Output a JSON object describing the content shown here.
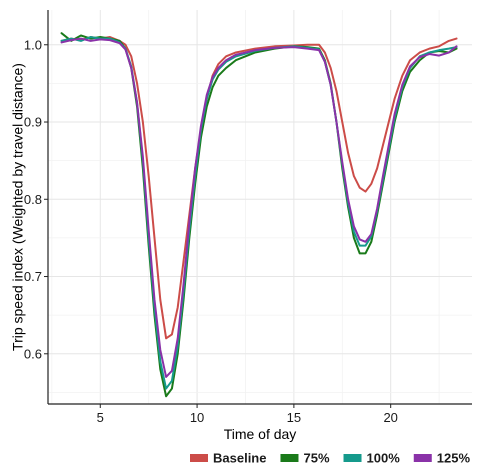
{
  "chart_data": {
    "type": "line",
    "title": "",
    "xlabel": "Time of day",
    "ylabel": "Trip speed index (Weighted by travel distance)",
    "xlim": [
      2.3,
      24.2
    ],
    "ylim": [
      0.535,
      1.045
    ],
    "x_ticks": [
      5,
      10,
      15,
      20
    ],
    "x_tick_labels": [
      "5",
      "10",
      "15",
      "20"
    ],
    "y_ticks": [
      0.6,
      0.7,
      0.8,
      0.9,
      1.0
    ],
    "y_tick_labels": [
      "0.6",
      "0.7",
      "0.8",
      "0.9",
      "1.0"
    ],
    "grid": true,
    "legend_position": "bottom-right",
    "series": [
      {
        "name": "Baseline",
        "color": "#cc4c48",
        "points": [
          [
            3.0,
            1.005
          ],
          [
            3.5,
            1.008
          ],
          [
            4.0,
            1.006
          ],
          [
            4.5,
            1.01
          ],
          [
            5.0,
            1.008
          ],
          [
            5.5,
            1.01
          ],
          [
            6.0,
            1.005
          ],
          [
            6.3,
            1.0
          ],
          [
            6.6,
            0.985
          ],
          [
            6.9,
            0.95
          ],
          [
            7.2,
            0.9
          ],
          [
            7.5,
            0.83
          ],
          [
            7.8,
            0.75
          ],
          [
            8.1,
            0.67
          ],
          [
            8.4,
            0.62
          ],
          [
            8.7,
            0.625
          ],
          [
            9.0,
            0.66
          ],
          [
            9.3,
            0.72
          ],
          [
            9.6,
            0.78
          ],
          [
            9.9,
            0.84
          ],
          [
            10.2,
            0.89
          ],
          [
            10.5,
            0.93
          ],
          [
            10.8,
            0.96
          ],
          [
            11.1,
            0.975
          ],
          [
            11.5,
            0.985
          ],
          [
            12.0,
            0.99
          ],
          [
            13.0,
            0.995
          ],
          [
            14.0,
            0.998
          ],
          [
            15.0,
            0.999
          ],
          [
            15.7,
            1.0
          ],
          [
            16.3,
            1.0
          ],
          [
            16.6,
            0.99
          ],
          [
            16.9,
            0.97
          ],
          [
            17.2,
            0.94
          ],
          [
            17.5,
            0.9
          ],
          [
            17.8,
            0.86
          ],
          [
            18.1,
            0.83
          ],
          [
            18.4,
            0.815
          ],
          [
            18.7,
            0.81
          ],
          [
            19.0,
            0.82
          ],
          [
            19.3,
            0.84
          ],
          [
            19.6,
            0.87
          ],
          [
            19.9,
            0.9
          ],
          [
            20.2,
            0.93
          ],
          [
            20.6,
            0.96
          ],
          [
            21.0,
            0.98
          ],
          [
            21.5,
            0.99
          ],
          [
            22.0,
            0.995
          ],
          [
            22.5,
            0.998
          ],
          [
            23.0,
            1.005
          ],
          [
            23.4,
            1.008
          ]
        ]
      },
      {
        "name": "75%",
        "color": "#1a7a1a",
        "points": [
          [
            3.0,
            1.015
          ],
          [
            3.5,
            1.005
          ],
          [
            4.0,
            1.012
          ],
          [
            4.5,
            1.008
          ],
          [
            5.0,
            1.01
          ],
          [
            5.5,
            1.008
          ],
          [
            6.0,
            1.005
          ],
          [
            6.3,
            0.995
          ],
          [
            6.6,
            0.97
          ],
          [
            6.9,
            0.92
          ],
          [
            7.2,
            0.84
          ],
          [
            7.5,
            0.74
          ],
          [
            7.8,
            0.65
          ],
          [
            8.1,
            0.58
          ],
          [
            8.4,
            0.545
          ],
          [
            8.7,
            0.555
          ],
          [
            9.0,
            0.6
          ],
          [
            9.3,
            0.67
          ],
          [
            9.6,
            0.75
          ],
          [
            9.9,
            0.82
          ],
          [
            10.2,
            0.88
          ],
          [
            10.5,
            0.92
          ],
          [
            10.8,
            0.945
          ],
          [
            11.1,
            0.96
          ],
          [
            11.5,
            0.97
          ],
          [
            12.0,
            0.98
          ],
          [
            13.0,
            0.99
          ],
          [
            14.0,
            0.995
          ],
          [
            15.0,
            0.998
          ],
          [
            15.7,
            0.997
          ],
          [
            16.3,
            0.995
          ],
          [
            16.6,
            0.98
          ],
          [
            16.9,
            0.95
          ],
          [
            17.2,
            0.9
          ],
          [
            17.5,
            0.84
          ],
          [
            17.8,
            0.79
          ],
          [
            18.1,
            0.75
          ],
          [
            18.4,
            0.73
          ],
          [
            18.7,
            0.73
          ],
          [
            19.0,
            0.745
          ],
          [
            19.3,
            0.78
          ],
          [
            19.6,
            0.82
          ],
          [
            19.9,
            0.86
          ],
          [
            20.2,
            0.9
          ],
          [
            20.6,
            0.94
          ],
          [
            21.0,
            0.965
          ],
          [
            21.5,
            0.98
          ],
          [
            22.0,
            0.99
          ],
          [
            22.5,
            0.992
          ],
          [
            23.0,
            0.99
          ],
          [
            23.4,
            0.995
          ]
        ]
      },
      {
        "name": "100%",
        "color": "#159a8c",
        "points": [
          [
            3.0,
            1.005
          ],
          [
            3.5,
            1.008
          ],
          [
            4.0,
            1.005
          ],
          [
            4.5,
            1.01
          ],
          [
            5.0,
            1.008
          ],
          [
            5.5,
            1.008
          ],
          [
            6.0,
            1.003
          ],
          [
            6.3,
            0.995
          ],
          [
            6.6,
            0.972
          ],
          [
            6.9,
            0.925
          ],
          [
            7.2,
            0.85
          ],
          [
            7.5,
            0.75
          ],
          [
            7.8,
            0.66
          ],
          [
            8.1,
            0.59
          ],
          [
            8.4,
            0.555
          ],
          [
            8.7,
            0.565
          ],
          [
            9.0,
            0.61
          ],
          [
            9.3,
            0.68
          ],
          [
            9.6,
            0.76
          ],
          [
            9.9,
            0.83
          ],
          [
            10.2,
            0.89
          ],
          [
            10.5,
            0.93
          ],
          [
            10.8,
            0.955
          ],
          [
            11.1,
            0.968
          ],
          [
            11.5,
            0.978
          ],
          [
            12.0,
            0.985
          ],
          [
            13.0,
            0.992
          ],
          [
            14.0,
            0.996
          ],
          [
            15.0,
            0.998
          ],
          [
            15.7,
            0.996
          ],
          [
            16.3,
            0.994
          ],
          [
            16.6,
            0.978
          ],
          [
            16.9,
            0.948
          ],
          [
            17.2,
            0.9
          ],
          [
            17.5,
            0.845
          ],
          [
            17.8,
            0.795
          ],
          [
            18.1,
            0.758
          ],
          [
            18.4,
            0.74
          ],
          [
            18.7,
            0.74
          ],
          [
            19.0,
            0.752
          ],
          [
            19.3,
            0.785
          ],
          [
            19.6,
            0.825
          ],
          [
            19.9,
            0.865
          ],
          [
            20.2,
            0.905
          ],
          [
            20.6,
            0.945
          ],
          [
            21.0,
            0.97
          ],
          [
            21.5,
            0.985
          ],
          [
            22.0,
            0.99
          ],
          [
            22.5,
            0.993
          ],
          [
            23.0,
            0.995
          ],
          [
            23.4,
            0.997
          ]
        ]
      },
      {
        "name": "125%",
        "color": "#8a32a8",
        "points": [
          [
            3.0,
            1.003
          ],
          [
            3.5,
            1.006
          ],
          [
            4.0,
            1.008
          ],
          [
            4.5,
            1.005
          ],
          [
            5.0,
            1.007
          ],
          [
            5.5,
            1.006
          ],
          [
            6.0,
            1.002
          ],
          [
            6.3,
            0.994
          ],
          [
            6.6,
            0.97
          ],
          [
            6.9,
            0.925
          ],
          [
            7.2,
            0.855
          ],
          [
            7.5,
            0.76
          ],
          [
            7.8,
            0.67
          ],
          [
            8.1,
            0.605
          ],
          [
            8.4,
            0.57
          ],
          [
            8.7,
            0.578
          ],
          [
            9.0,
            0.62
          ],
          [
            9.3,
            0.69
          ],
          [
            9.6,
            0.77
          ],
          [
            9.9,
            0.84
          ],
          [
            10.2,
            0.895
          ],
          [
            10.5,
            0.935
          ],
          [
            10.8,
            0.958
          ],
          [
            11.1,
            0.97
          ],
          [
            11.5,
            0.98
          ],
          [
            12.0,
            0.987
          ],
          [
            13.0,
            0.993
          ],
          [
            14.0,
            0.996
          ],
          [
            15.0,
            0.997
          ],
          [
            15.7,
            0.995
          ],
          [
            16.3,
            0.993
          ],
          [
            16.6,
            0.978
          ],
          [
            16.9,
            0.948
          ],
          [
            17.2,
            0.9
          ],
          [
            17.5,
            0.848
          ],
          [
            17.8,
            0.8
          ],
          [
            18.1,
            0.765
          ],
          [
            18.4,
            0.748
          ],
          [
            18.7,
            0.745
          ],
          [
            19.0,
            0.755
          ],
          [
            19.3,
            0.788
          ],
          [
            19.6,
            0.83
          ],
          [
            19.9,
            0.87
          ],
          [
            20.2,
            0.91
          ],
          [
            20.6,
            0.948
          ],
          [
            21.0,
            0.972
          ],
          [
            21.5,
            0.984
          ],
          [
            22.0,
            0.988
          ],
          [
            22.5,
            0.986
          ],
          [
            23.0,
            0.99
          ],
          [
            23.4,
            0.998
          ]
        ]
      }
    ]
  }
}
